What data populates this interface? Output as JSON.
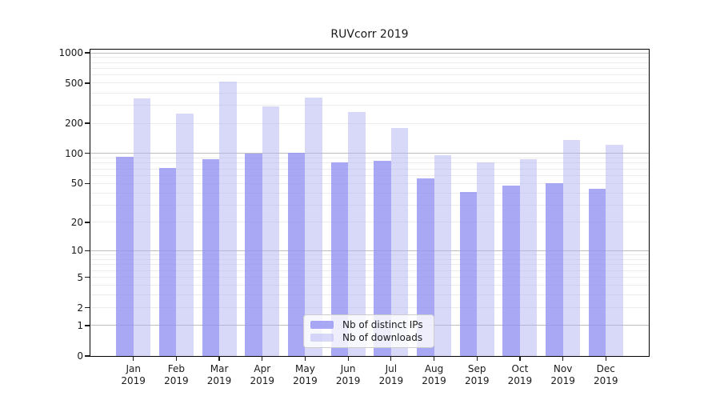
{
  "chart_data": {
    "type": "bar",
    "title": "RUVcorr 2019",
    "categories": [
      "Jan",
      "Feb",
      "Mar",
      "Apr",
      "May",
      "Jun",
      "Jul",
      "Aug",
      "Sep",
      "Oct",
      "Nov",
      "Dec"
    ],
    "x_year_label": "2019",
    "series": [
      {
        "name": "Nb of distinct IPs",
        "color": "rgba(146,146,243,0.8)",
        "values": [
          93,
          72,
          88,
          100,
          102,
          82,
          85,
          56,
          41,
          48,
          50,
          44
        ]
      },
      {
        "name": "Nb of downloads",
        "color": "rgba(177,177,242,0.5)",
        "values": [
          356,
          248,
          515,
          292,
          358,
          258,
          179,
          96,
          81,
          88,
          136,
          122
        ]
      }
    ],
    "y_axis": {
      "scale": "log-like (position ~ log10(value+1))",
      "ticks": [
        0,
        1,
        2,
        5,
        10,
        20,
        50,
        100,
        200,
        500,
        1000
      ],
      "major_gridlines": [
        1,
        10,
        100,
        1000
      ],
      "range": [
        0,
        1070
      ]
    },
    "x_axis": {
      "range_units": [
        -1,
        12
      ]
    },
    "legend": {
      "position": "lower center-left inside plot"
    },
    "grid": {
      "on": true,
      "major_color": "#bdbdbd",
      "minor_color": "#ececec"
    }
  },
  "colors": {
    "background": "#ffffff",
    "frame": "#000000",
    "text": "#1a1a1a",
    "bar_distinct_ips": "rgba(146,146,243,0.8)",
    "bar_downloads": "rgba(177,177,242,0.5)"
  }
}
